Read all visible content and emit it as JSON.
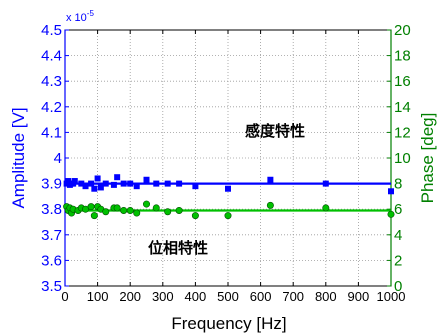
{
  "chart_data": {
    "type": "scatter",
    "xlabel": "Frequency [Hz]",
    "ylabel_left": "Amplitude [V]",
    "ylabel_right": "Phase [deg]",
    "exponent_label": "x 10",
    "exponent_power": "-5",
    "xlim": [
      0,
      1000
    ],
    "ylim_left": [
      3.5,
      4.5
    ],
    "ylim_right": [
      0,
      20
    ],
    "x_ticks": [
      "0",
      "100",
      "200",
      "300",
      "400",
      "500",
      "600",
      "700",
      "800",
      "900",
      "1000"
    ],
    "y_left_ticks": [
      "3.5",
      "3.6",
      "3.7",
      "3.8",
      "3.9",
      "4",
      "4.1",
      "4.2",
      "4.3",
      "4.4",
      "4.5"
    ],
    "y_right_ticks": [
      "0",
      "2",
      "4",
      "6",
      "8",
      "10",
      "12",
      "14",
      "16",
      "18",
      "20"
    ],
    "grid": true,
    "annotations": [
      {
        "text": "感度特性",
        "x": 630,
        "y": 4.13
      },
      {
        "text": "位相特性",
        "x": 290,
        "y": 3.68
      }
    ],
    "series": [
      {
        "axis": "left",
        "marker": "square",
        "color": "#0000ff",
        "fit_line": 3.9,
        "points": [
          [
            5,
            3.9
          ],
          [
            10,
            3.91
          ],
          [
            15,
            3.895
          ],
          [
            20,
            3.9
          ],
          [
            25,
            3.9
          ],
          [
            30,
            3.91
          ],
          [
            50,
            3.9
          ],
          [
            63,
            3.89
          ],
          [
            80,
            3.9
          ],
          [
            90,
            3.88
          ],
          [
            100,
            3.92
          ],
          [
            110,
            3.885
          ],
          [
            125,
            3.9
          ],
          [
            150,
            3.895
          ],
          [
            160,
            3.925
          ],
          [
            180,
            3.9
          ],
          [
            200,
            3.9
          ],
          [
            220,
            3.89
          ],
          [
            250,
            3.915
          ],
          [
            280,
            3.9
          ],
          [
            315,
            3.9
          ],
          [
            350,
            3.9
          ],
          [
            400,
            3.89
          ],
          [
            500,
            3.88
          ],
          [
            630,
            3.915
          ],
          [
            800,
            3.9
          ],
          [
            1000,
            3.87
          ]
        ]
      },
      {
        "axis": "right",
        "marker": "circle",
        "color": "#00c000",
        "fit_line": 5.9,
        "points": [
          [
            5,
            6.2
          ],
          [
            10,
            5.9
          ],
          [
            15,
            6.1
          ],
          [
            20,
            5.7
          ],
          [
            25,
            6.0
          ],
          [
            40,
            5.9
          ],
          [
            50,
            6.1
          ],
          [
            63,
            6.0
          ],
          [
            80,
            6.2
          ],
          [
            90,
            5.5
          ],
          [
            100,
            6.2
          ],
          [
            110,
            6.0
          ],
          [
            125,
            5.8
          ],
          [
            150,
            6.1
          ],
          [
            160,
            6.1
          ],
          [
            180,
            5.9
          ],
          [
            200,
            5.9
          ],
          [
            220,
            5.7
          ],
          [
            250,
            6.4
          ],
          [
            280,
            6.1
          ],
          [
            315,
            5.8
          ],
          [
            350,
            5.9
          ],
          [
            400,
            5.5
          ],
          [
            500,
            5.5
          ],
          [
            630,
            6.3
          ],
          [
            800,
            6.1
          ],
          [
            1000,
            5.6
          ]
        ]
      }
    ]
  }
}
